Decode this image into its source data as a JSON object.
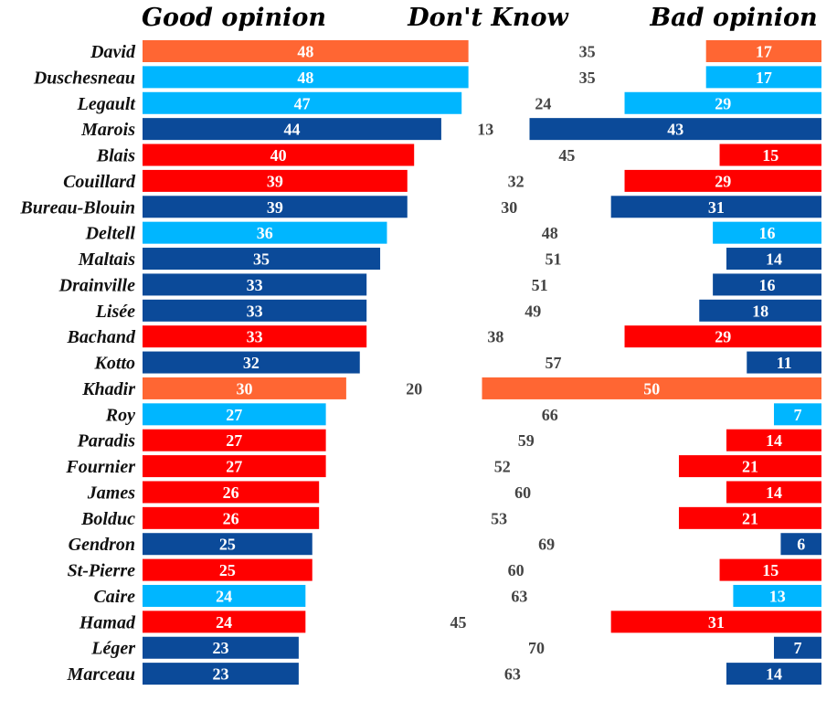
{
  "chart_data": {
    "type": "bar",
    "subtype": "diverging-stacked-horizontal",
    "title": "",
    "column_headers": {
      "good": "Good opinion",
      "dont_know": "Don't Know",
      "bad": "Bad opinion"
    },
    "party_colors": {
      "orange": "#ff6633",
      "lightblue": "#00b6ff",
      "darkblue": "#0b4a99",
      "red": "#ff0000"
    },
    "categories": [
      "David",
      "Duschesneau",
      "Legault",
      "Marois",
      "Blais",
      "Couillard",
      "Bureau-Blouin",
      "Deltell",
      "Maltais",
      "Drainville",
      "Lisée",
      "Bachand",
      "Kotto",
      "Khadir",
      "Roy",
      "Paradis",
      "Fournier",
      "James",
      "Bolduc",
      "Gendron",
      "St-Pierre",
      "Caire",
      "Hamad",
      "Léger",
      "Marceau"
    ],
    "colors": [
      "orange",
      "lightblue",
      "lightblue",
      "darkblue",
      "red",
      "red",
      "darkblue",
      "lightblue",
      "darkblue",
      "darkblue",
      "darkblue",
      "red",
      "darkblue",
      "orange",
      "lightblue",
      "red",
      "red",
      "red",
      "red",
      "darkblue",
      "red",
      "lightblue",
      "red",
      "darkblue",
      "darkblue"
    ],
    "series": [
      {
        "name": "Good opinion",
        "values": [
          48,
          48,
          47,
          44,
          40,
          39,
          39,
          36,
          35,
          33,
          33,
          33,
          32,
          30,
          27,
          27,
          27,
          26,
          26,
          25,
          25,
          24,
          24,
          23,
          23
        ]
      },
      {
        "name": "Don't Know",
        "values": [
          35,
          35,
          24,
          13,
          45,
          32,
          30,
          48,
          51,
          51,
          49,
          38,
          57,
          20,
          66,
          59,
          52,
          60,
          53,
          69,
          60,
          63,
          45,
          70,
          63
        ]
      },
      {
        "name": "Bad opinion",
        "values": [
          17,
          17,
          29,
          43,
          15,
          29,
          31,
          16,
          14,
          16,
          18,
          29,
          11,
          50,
          7,
          14,
          21,
          14,
          21,
          6,
          15,
          13,
          31,
          7,
          14
        ]
      }
    ],
    "xlim": [
      0,
      100
    ],
    "grid": false,
    "legend": "none"
  }
}
